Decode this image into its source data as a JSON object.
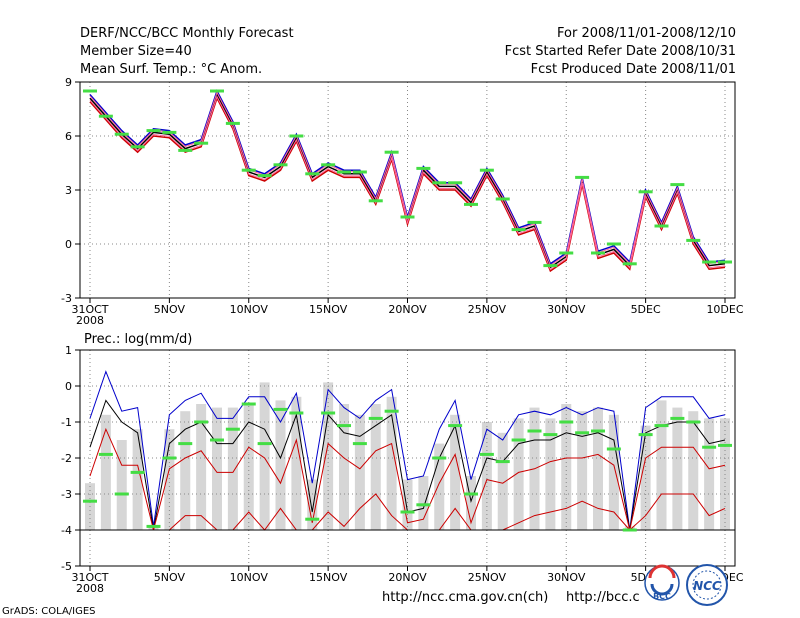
{
  "header": {
    "title": "DERF/NCC/BCC Monthly Forecast",
    "member": "Member Size=40",
    "variable": "Mean Surf. Temp.: °C Anom.",
    "period": "For 2008/11/01-2008/12/10",
    "started": "Fcst Started Refer Date 2008/10/31",
    "produced": "Fcst Produced Date 2008/11/01"
  },
  "footer": {
    "grads": "GrADS: COLA/IGES",
    "url1": "http://ncc.cma.gov.cn(ch)",
    "url2": "http://bcc.c",
    "logo_bcc": "BCC",
    "logo_ncc": "NCC"
  },
  "colors": {
    "observed": "#44dd44",
    "ens_mean": "#000000",
    "upper": "#0000cc",
    "lower": "#cc0000",
    "bar": "#d6d6d6"
  },
  "chart_data": [
    {
      "type": "line",
      "title": "Mean Surf. Temp.: °C Anom.",
      "x_ticks": [
        "31OCT",
        "5NOV",
        "10NOV",
        "15NOV",
        "20NOV",
        "25NOV",
        "30NOV",
        "5DEC",
        "10DEC"
      ],
      "x_sublabel": "2008",
      "y_ticks": [
        -3,
        0,
        3,
        6,
        9
      ],
      "ylim": [
        -3,
        9
      ],
      "x_count": 41,
      "series": [
        {
          "name": "ensemble mean",
          "values": [
            8.1,
            7.1,
            6.1,
            5.3,
            6.2,
            6.1,
            5.3,
            5.6,
            8.3,
            6.6,
            4.0,
            3.7,
            4.3,
            5.9,
            3.7,
            4.3,
            3.9,
            3.9,
            2.4,
            4.9,
            1.3,
            4.1,
            3.2,
            3.2,
            2.3,
            4.0,
            2.5,
            0.7,
            1.0,
            -1.3,
            -0.7,
            3.5,
            -0.6,
            -0.3,
            -1.2,
            2.8,
            1.0,
            3.0,
            0.2,
            -1.2,
            -1.1
          ]
        },
        {
          "name": "upper",
          "values": [
            8.3,
            7.3,
            6.3,
            5.5,
            6.4,
            6.3,
            5.5,
            5.8,
            8.5,
            6.8,
            4.2,
            3.9,
            4.5,
            6.1,
            3.9,
            4.5,
            4.1,
            4.1,
            2.6,
            5.1,
            1.5,
            4.3,
            3.4,
            3.4,
            2.5,
            4.2,
            2.7,
            0.9,
            1.2,
            -1.1,
            -0.5,
            3.7,
            -0.4,
            -0.1,
            -1.0,
            3.0,
            1.2,
            3.2,
            0.4,
            -1.0,
            -0.9
          ]
        },
        {
          "name": "lower",
          "values": [
            7.9,
            6.9,
            5.9,
            5.1,
            6.0,
            5.9,
            5.1,
            5.4,
            8.1,
            6.4,
            3.8,
            3.5,
            4.1,
            5.7,
            3.5,
            4.1,
            3.7,
            3.7,
            2.2,
            4.7,
            1.1,
            3.9,
            3.0,
            3.0,
            2.1,
            3.8,
            2.3,
            0.5,
            0.8,
            -1.5,
            -0.9,
            3.3,
            -0.8,
            -0.5,
            -1.4,
            2.6,
            0.8,
            2.8,
            0.0,
            -1.4,
            -1.3
          ]
        },
        {
          "name": "observed",
          "values": [
            8.5,
            7.1,
            6.1,
            5.4,
            6.3,
            6.2,
            5.2,
            5.6,
            8.5,
            6.7,
            4.1,
            3.8,
            4.4,
            6.0,
            3.9,
            4.4,
            4.0,
            4.0,
            2.4,
            5.1,
            1.5,
            4.2,
            3.4,
            3.4,
            2.2,
            4.1,
            2.5,
            0.8,
            1.2,
            -1.2,
            -0.5,
            3.7,
            -0.5,
            0.0,
            -1.1,
            2.9,
            1.0,
            3.3,
            0.2,
            -1.0,
            -1.0
          ]
        }
      ]
    },
    {
      "type": "bar",
      "title": "Prec.: log(mm/d)",
      "x_ticks": [
        "31OCT",
        "5NOV",
        "10NOV",
        "15NOV",
        "20NOV",
        "25NOV",
        "30NOV",
        "5DEC",
        "10DEC"
      ],
      "x_sublabel": "2008",
      "y_ticks": [
        -5,
        -4,
        -3,
        -2,
        -1,
        0,
        1
      ],
      "ylim": [
        -5,
        1
      ],
      "x_count": 41,
      "bars": {
        "name": "ensemble spread",
        "bottom": -4,
        "values": [
          -2.7,
          -0.8,
          -1.5,
          -1.2,
          -3.9,
          -1.2,
          -0.7,
          -0.5,
          -0.6,
          -0.6,
          -0.5,
          0.1,
          -0.4,
          -0.3,
          -2.6,
          0.1,
          -0.5,
          -0.8,
          -0.5,
          -0.3,
          -2.6,
          -2.5,
          -1.6,
          -0.8,
          -2.5,
          -1.0,
          -1.3,
          -0.9,
          -0.6,
          -0.9,
          -0.5,
          -0.7,
          -0.6,
          -0.8,
          -3.9,
          -1.1,
          -0.4,
          -0.6,
          -0.7,
          -0.9,
          -0.9
        ]
      },
      "series": [
        {
          "name": "upper",
          "values": [
            -0.9,
            0.4,
            -0.7,
            -0.6,
            -3.9,
            -0.8,
            -0.4,
            -0.2,
            -0.9,
            -0.9,
            -0.3,
            -0.3,
            -1.0,
            -0.2,
            -2.7,
            -0.1,
            -0.6,
            -0.9,
            -0.4,
            -0.1,
            -2.6,
            -2.5,
            -1.2,
            -0.4,
            -2.6,
            -1.2,
            -1.5,
            -0.8,
            -0.7,
            -0.8,
            -0.6,
            -0.8,
            -0.6,
            -0.7,
            -4.0,
            -0.6,
            -0.3,
            -0.3,
            -0.3,
            -0.9,
            -0.8
          ]
        },
        {
          "name": "ensemble mean",
          "values": [
            -1.7,
            -0.4,
            -1.0,
            -1.3,
            -4.0,
            -1.6,
            -1.2,
            -1.0,
            -1.6,
            -1.6,
            -1.0,
            -1.2,
            -2.0,
            -0.8,
            -3.5,
            -0.8,
            -1.3,
            -1.4,
            -1.1,
            -0.8,
            -3.5,
            -3.4,
            -2.0,
            -1.1,
            -3.2,
            -2.0,
            -2.1,
            -1.6,
            -1.5,
            -1.5,
            -1.3,
            -1.4,
            -1.3,
            -1.5,
            -4.0,
            -1.3,
            -1.1,
            -1.0,
            -1.0,
            -1.6,
            -1.5
          ]
        },
        {
          "name": "lower",
          "values": [
            -2.5,
            -1.2,
            -2.2,
            -2.2,
            -4.0,
            -2.3,
            -2.0,
            -1.8,
            -2.4,
            -2.4,
            -1.7,
            -2.0,
            -2.7,
            -1.5,
            -3.8,
            -1.6,
            -2.0,
            -2.3,
            -1.8,
            -1.6,
            -3.8,
            -3.7,
            -2.7,
            -1.9,
            -3.8,
            -2.6,
            -2.7,
            -2.4,
            -2.3,
            -2.1,
            -2.0,
            -2.0,
            -1.9,
            -2.2,
            -4.0,
            -2.0,
            -1.7,
            -1.7,
            -1.7,
            -2.3,
            -2.2
          ]
        },
        {
          "name": "lower bound",
          "values": [
            -4.0,
            -4.0,
            -4.0,
            -4.0,
            -4.0,
            -4.0,
            -3.6,
            -3.6,
            -4.0,
            -4.0,
            -3.5,
            -4.0,
            -3.4,
            -4.0,
            -4.0,
            -3.5,
            -3.9,
            -3.4,
            -3.0,
            -3.6,
            -4.0,
            -4.0,
            -4.0,
            -3.4,
            -4.0,
            -4.0,
            -4.0,
            -3.8,
            -3.6,
            -3.5,
            -3.4,
            -3.2,
            -3.4,
            -3.5,
            -4.0,
            -3.6,
            -3.0,
            -3.0,
            -3.0,
            -3.6,
            -3.4
          ]
        },
        {
          "name": "observed",
          "values": [
            -3.2,
            -1.9,
            -3.0,
            -2.4,
            -3.9,
            -2.0,
            -1.6,
            -1.0,
            -1.5,
            -1.2,
            -0.5,
            -1.6,
            -0.65,
            -0.75,
            -3.7,
            -0.75,
            -1.1,
            -1.6,
            -0.9,
            -0.7,
            -3.5,
            -3.3,
            -2.0,
            -1.1,
            -3.0,
            -1.9,
            -2.1,
            -1.5,
            -1.25,
            -1.35,
            -1.0,
            -1.3,
            -1.25,
            -1.75,
            -4.0,
            -1.35,
            -1.1,
            -0.9,
            -1.0,
            -1.7,
            -1.65
          ]
        }
      ]
    }
  ]
}
